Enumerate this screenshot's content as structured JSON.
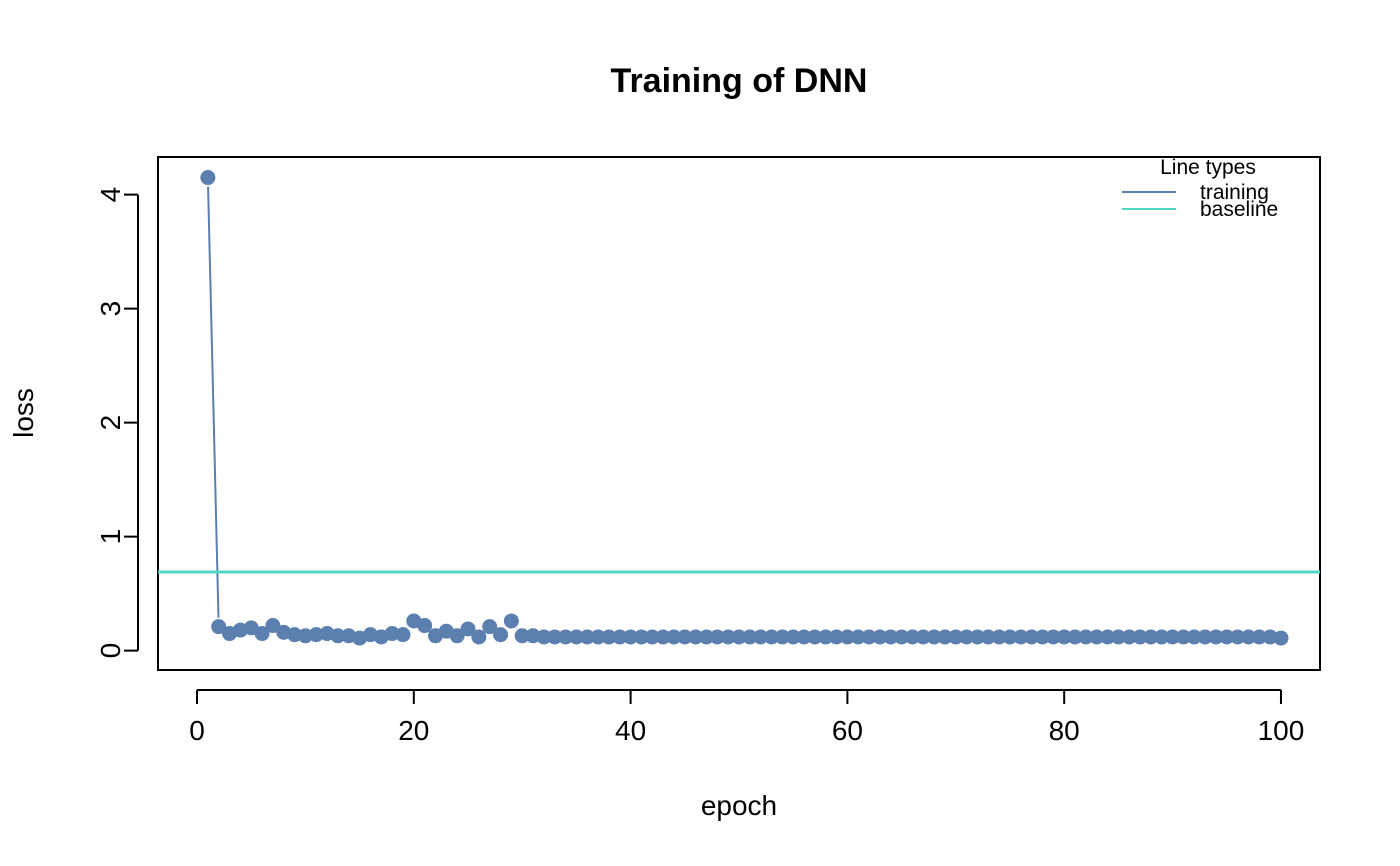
{
  "chart_data": {
    "type": "line",
    "title": "Training of DNN",
    "xlabel": "epoch",
    "ylabel": "loss",
    "xlim": [
      -3.6,
      103.6
    ],
    "ylim": [
      -0.17,
      4.33
    ],
    "x_ticks": [
      0,
      20,
      40,
      60,
      80,
      100
    ],
    "y_ticks": [
      0,
      1,
      2,
      3,
      4
    ],
    "grid": false,
    "legend": {
      "title": "Line types",
      "position": "top-right",
      "entries": [
        {
          "label": "training",
          "color": "#5b7fae"
        },
        {
          "label": "baseline",
          "color": "#4fd8c4"
        }
      ]
    },
    "series": [
      {
        "name": "training",
        "style": "line+points",
        "color": "#5b7fae",
        "x": [
          1,
          2,
          3,
          4,
          5,
          6,
          7,
          8,
          9,
          10,
          11,
          12,
          13,
          14,
          15,
          16,
          17,
          18,
          19,
          20,
          21,
          22,
          23,
          24,
          25,
          26,
          27,
          28,
          29,
          30,
          31,
          32,
          33,
          34,
          35,
          36,
          37,
          38,
          39,
          40,
          41,
          42,
          43,
          44,
          45,
          46,
          47,
          48,
          49,
          50,
          51,
          52,
          53,
          54,
          55,
          56,
          57,
          58,
          59,
          60,
          61,
          62,
          63,
          64,
          65,
          66,
          67,
          68,
          69,
          70,
          71,
          72,
          73,
          74,
          75,
          76,
          77,
          78,
          79,
          80,
          81,
          82,
          83,
          84,
          85,
          86,
          87,
          88,
          89,
          90,
          91,
          92,
          93,
          94,
          95,
          96,
          97,
          98,
          99,
          100
        ],
        "y": [
          4.15,
          0.21,
          0.15,
          0.18,
          0.2,
          0.15,
          0.22,
          0.16,
          0.14,
          0.13,
          0.14,
          0.15,
          0.13,
          0.13,
          0.11,
          0.14,
          0.12,
          0.15,
          0.14,
          0.26,
          0.22,
          0.13,
          0.17,
          0.13,
          0.19,
          0.12,
          0.21,
          0.14,
          0.26,
          0.13,
          0.13,
          0.12,
          0.12,
          0.12,
          0.12,
          0.12,
          0.12,
          0.12,
          0.12,
          0.12,
          0.12,
          0.12,
          0.12,
          0.12,
          0.12,
          0.12,
          0.12,
          0.12,
          0.12,
          0.12,
          0.12,
          0.12,
          0.12,
          0.12,
          0.12,
          0.12,
          0.12,
          0.12,
          0.12,
          0.12,
          0.12,
          0.12,
          0.12,
          0.12,
          0.12,
          0.12,
          0.12,
          0.12,
          0.12,
          0.12,
          0.12,
          0.12,
          0.12,
          0.12,
          0.12,
          0.12,
          0.12,
          0.12,
          0.12,
          0.12,
          0.12,
          0.12,
          0.12,
          0.12,
          0.12,
          0.12,
          0.12,
          0.12,
          0.12,
          0.12,
          0.12,
          0.12,
          0.12,
          0.12,
          0.12,
          0.12,
          0.12,
          0.12,
          0.12,
          0.11
        ]
      },
      {
        "name": "baseline",
        "style": "hline",
        "color": "#4fd8c4",
        "y": 0.69
      }
    ]
  }
}
